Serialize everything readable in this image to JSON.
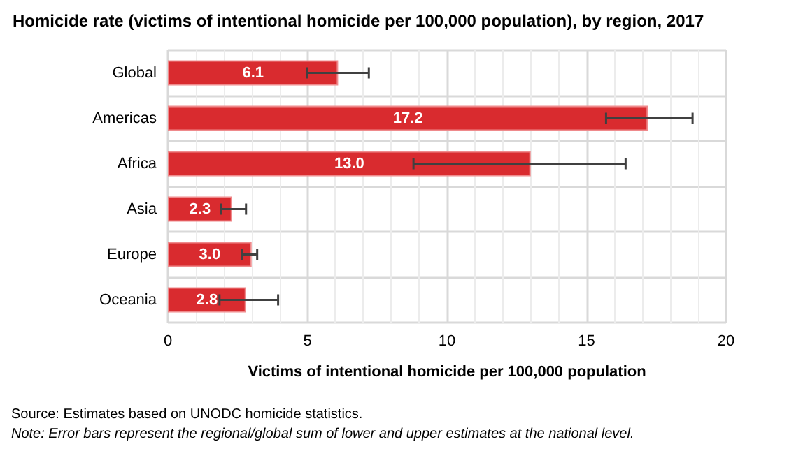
{
  "chart_data": {
    "type": "bar",
    "orientation": "horizontal",
    "title": "Homicide rate (victims of intentional homicide per 100,000 population), by region, 2017",
    "xlabel": "Victims of intentional homicide per 100,000 population",
    "categories": [
      "Global",
      "Americas",
      "Africa",
      "Asia",
      "Europe",
      "Oceania"
    ],
    "values": [
      6.1,
      17.2,
      13.0,
      2.3,
      3.0,
      2.8
    ],
    "errors": [
      [
        5.0,
        7.2
      ],
      [
        15.7,
        18.8
      ],
      [
        8.8,
        16.4
      ],
      [
        1.9,
        2.8
      ],
      [
        2.65,
        3.2
      ],
      [
        1.85,
        3.95
      ]
    ],
    "value_labels": [
      "6.1",
      "17.2",
      "13.0",
      "2.3",
      "3.0",
      "2.8"
    ],
    "color": "#d92b2f",
    "xlim": [
      0,
      20
    ],
    "xticks": [
      0,
      5,
      10,
      15,
      20
    ],
    "grid": true,
    "annotations": [
      "Source: Estimates based on UNODC homicide statistics.",
      "Note: Error bars represent the regional/global sum of lower and upper estimates at the national level."
    ]
  }
}
